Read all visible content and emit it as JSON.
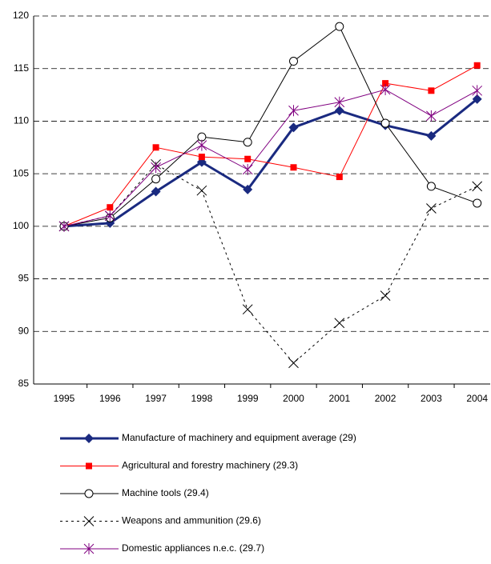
{
  "chart_data": {
    "type": "line",
    "categories": [
      "1995",
      "1996",
      "1997",
      "1998",
      "1999",
      "2000",
      "2001",
      "2002",
      "2003",
      "2004"
    ],
    "ylim": [
      85,
      120
    ],
    "yticks": [
      85,
      90,
      95,
      100,
      105,
      110,
      115,
      120
    ],
    "grid": true,
    "series": [
      {
        "name": "Manufacture of machinery and equipment average (29)",
        "color": "#1a2a80",
        "marker": "diamond",
        "linestyle": "solid",
        "linewidth": 3,
        "values": [
          100,
          100.3,
          103.3,
          106.1,
          103.5,
          109.4,
          111,
          109.6,
          108.6,
          112.1
        ]
      },
      {
        "name": "Agricultural and forestry machinery (29.3)",
        "color": "#ff0000",
        "marker": "square",
        "linestyle": "solid",
        "linewidth": 1,
        "values": [
          100,
          101.8,
          107.5,
          106.6,
          106.4,
          105.6,
          104.7,
          113.6,
          112.9,
          115.3
        ]
      },
      {
        "name": "Machine tools (29.4)",
        "color": "#000000",
        "marker": "circle",
        "linestyle": "solid",
        "linewidth": 1,
        "values": [
          100,
          100.8,
          104.5,
          108.5,
          108,
          115.7,
          119,
          109.8,
          103.8,
          102.2
        ]
      },
      {
        "name": "Weapons and ammunition (29.6)",
        "color": "#000000",
        "marker": "x",
        "linestyle": "dotted",
        "linewidth": 1,
        "values": [
          100,
          101,
          105.9,
          103.4,
          92.1,
          87,
          90.8,
          93.4,
          101.7,
          103.8
        ]
      },
      {
        "name": "Domestic appliances n.e.c. (29.7)",
        "color": "#800080",
        "marker": "star",
        "linestyle": "solid",
        "linewidth": 1,
        "values": [
          100,
          101,
          105.6,
          107.7,
          105.4,
          111,
          111.8,
          113,
          110.5,
          112.9
        ]
      }
    ]
  }
}
